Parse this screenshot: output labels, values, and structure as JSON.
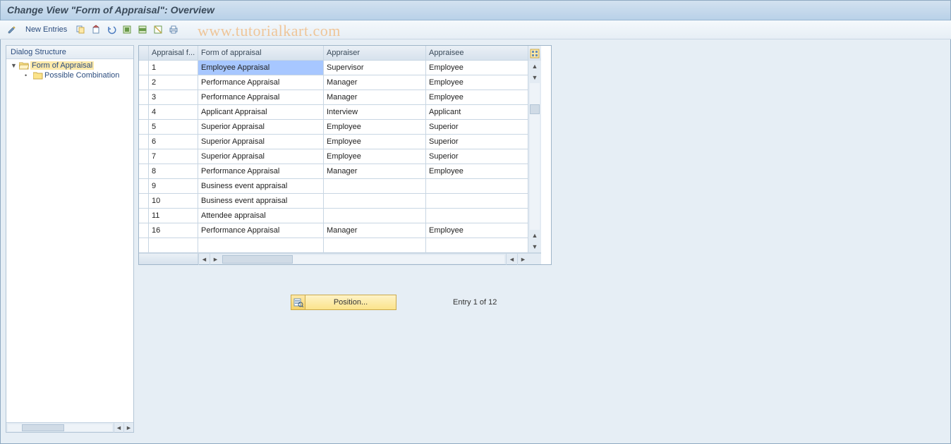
{
  "title": "Change View \"Form of Appraisal\": Overview",
  "toolbar": {
    "new_entries": "New Entries"
  },
  "watermark": "www.tutorialkart.com",
  "tree": {
    "header": "Dialog Structure",
    "root": {
      "label": "Form of Appraisal",
      "expanded": true
    },
    "child": {
      "label": "Possible Combination"
    }
  },
  "table": {
    "columns": [
      "Appraisal f...",
      "Form of appraisal",
      "Appraiser",
      "Appraisee"
    ],
    "rows": [
      {
        "id": "1",
        "form": "Employee Appraisal",
        "appraiser": "Supervisor",
        "appraisee": "Employee",
        "selected": true
      },
      {
        "id": "2",
        "form": "Performance Appraisal",
        "appraiser": "Manager",
        "appraisee": "Employee"
      },
      {
        "id": "3",
        "form": "Performance Appraisal",
        "appraiser": "Manager",
        "appraisee": "Employee"
      },
      {
        "id": "4",
        "form": "Applicant Appraisal",
        "appraiser": "Interview",
        "appraisee": "Applicant"
      },
      {
        "id": "5",
        "form": "Superior Appraisal",
        "appraiser": "Employee",
        "appraisee": "Superior"
      },
      {
        "id": "6",
        "form": "Superior Appraisal",
        "appraiser": "Employee",
        "appraisee": "Superior"
      },
      {
        "id": "7",
        "form": "Superior Appraisal",
        "appraiser": "Employee",
        "appraisee": "Superior"
      },
      {
        "id": "8",
        "form": "Performance Appraisal",
        "appraiser": "Manager",
        "appraisee": "Employee"
      },
      {
        "id": "9",
        "form": "Business event appraisal",
        "appraiser": "",
        "appraisee": ""
      },
      {
        "id": "10",
        "form": "Business event appraisal",
        "appraiser": "",
        "appraisee": ""
      },
      {
        "id": "11",
        "form": "Attendee appraisal",
        "appraiser": "",
        "appraisee": ""
      },
      {
        "id": "16",
        "form": "Performance Appraisal",
        "appraiser": "Manager",
        "appraisee": "Employee"
      },
      {
        "id": "",
        "form": "",
        "appraiser": "",
        "appraisee": ""
      }
    ]
  },
  "footer": {
    "position_label": "Position...",
    "entry_text": "Entry 1 of 12"
  },
  "colors": {
    "background": "#e6eef5",
    "header_gradient_top": "#d3e2f0",
    "header_gradient_bottom": "#b9d1e8",
    "border": "#9fb5c9",
    "selection": "#a7c7ff",
    "tree_selection": "#fde9a9",
    "button_yellow_top": "#fef3c7",
    "button_yellow_bottom": "#fbe38a",
    "watermark": "#f2a24d"
  }
}
